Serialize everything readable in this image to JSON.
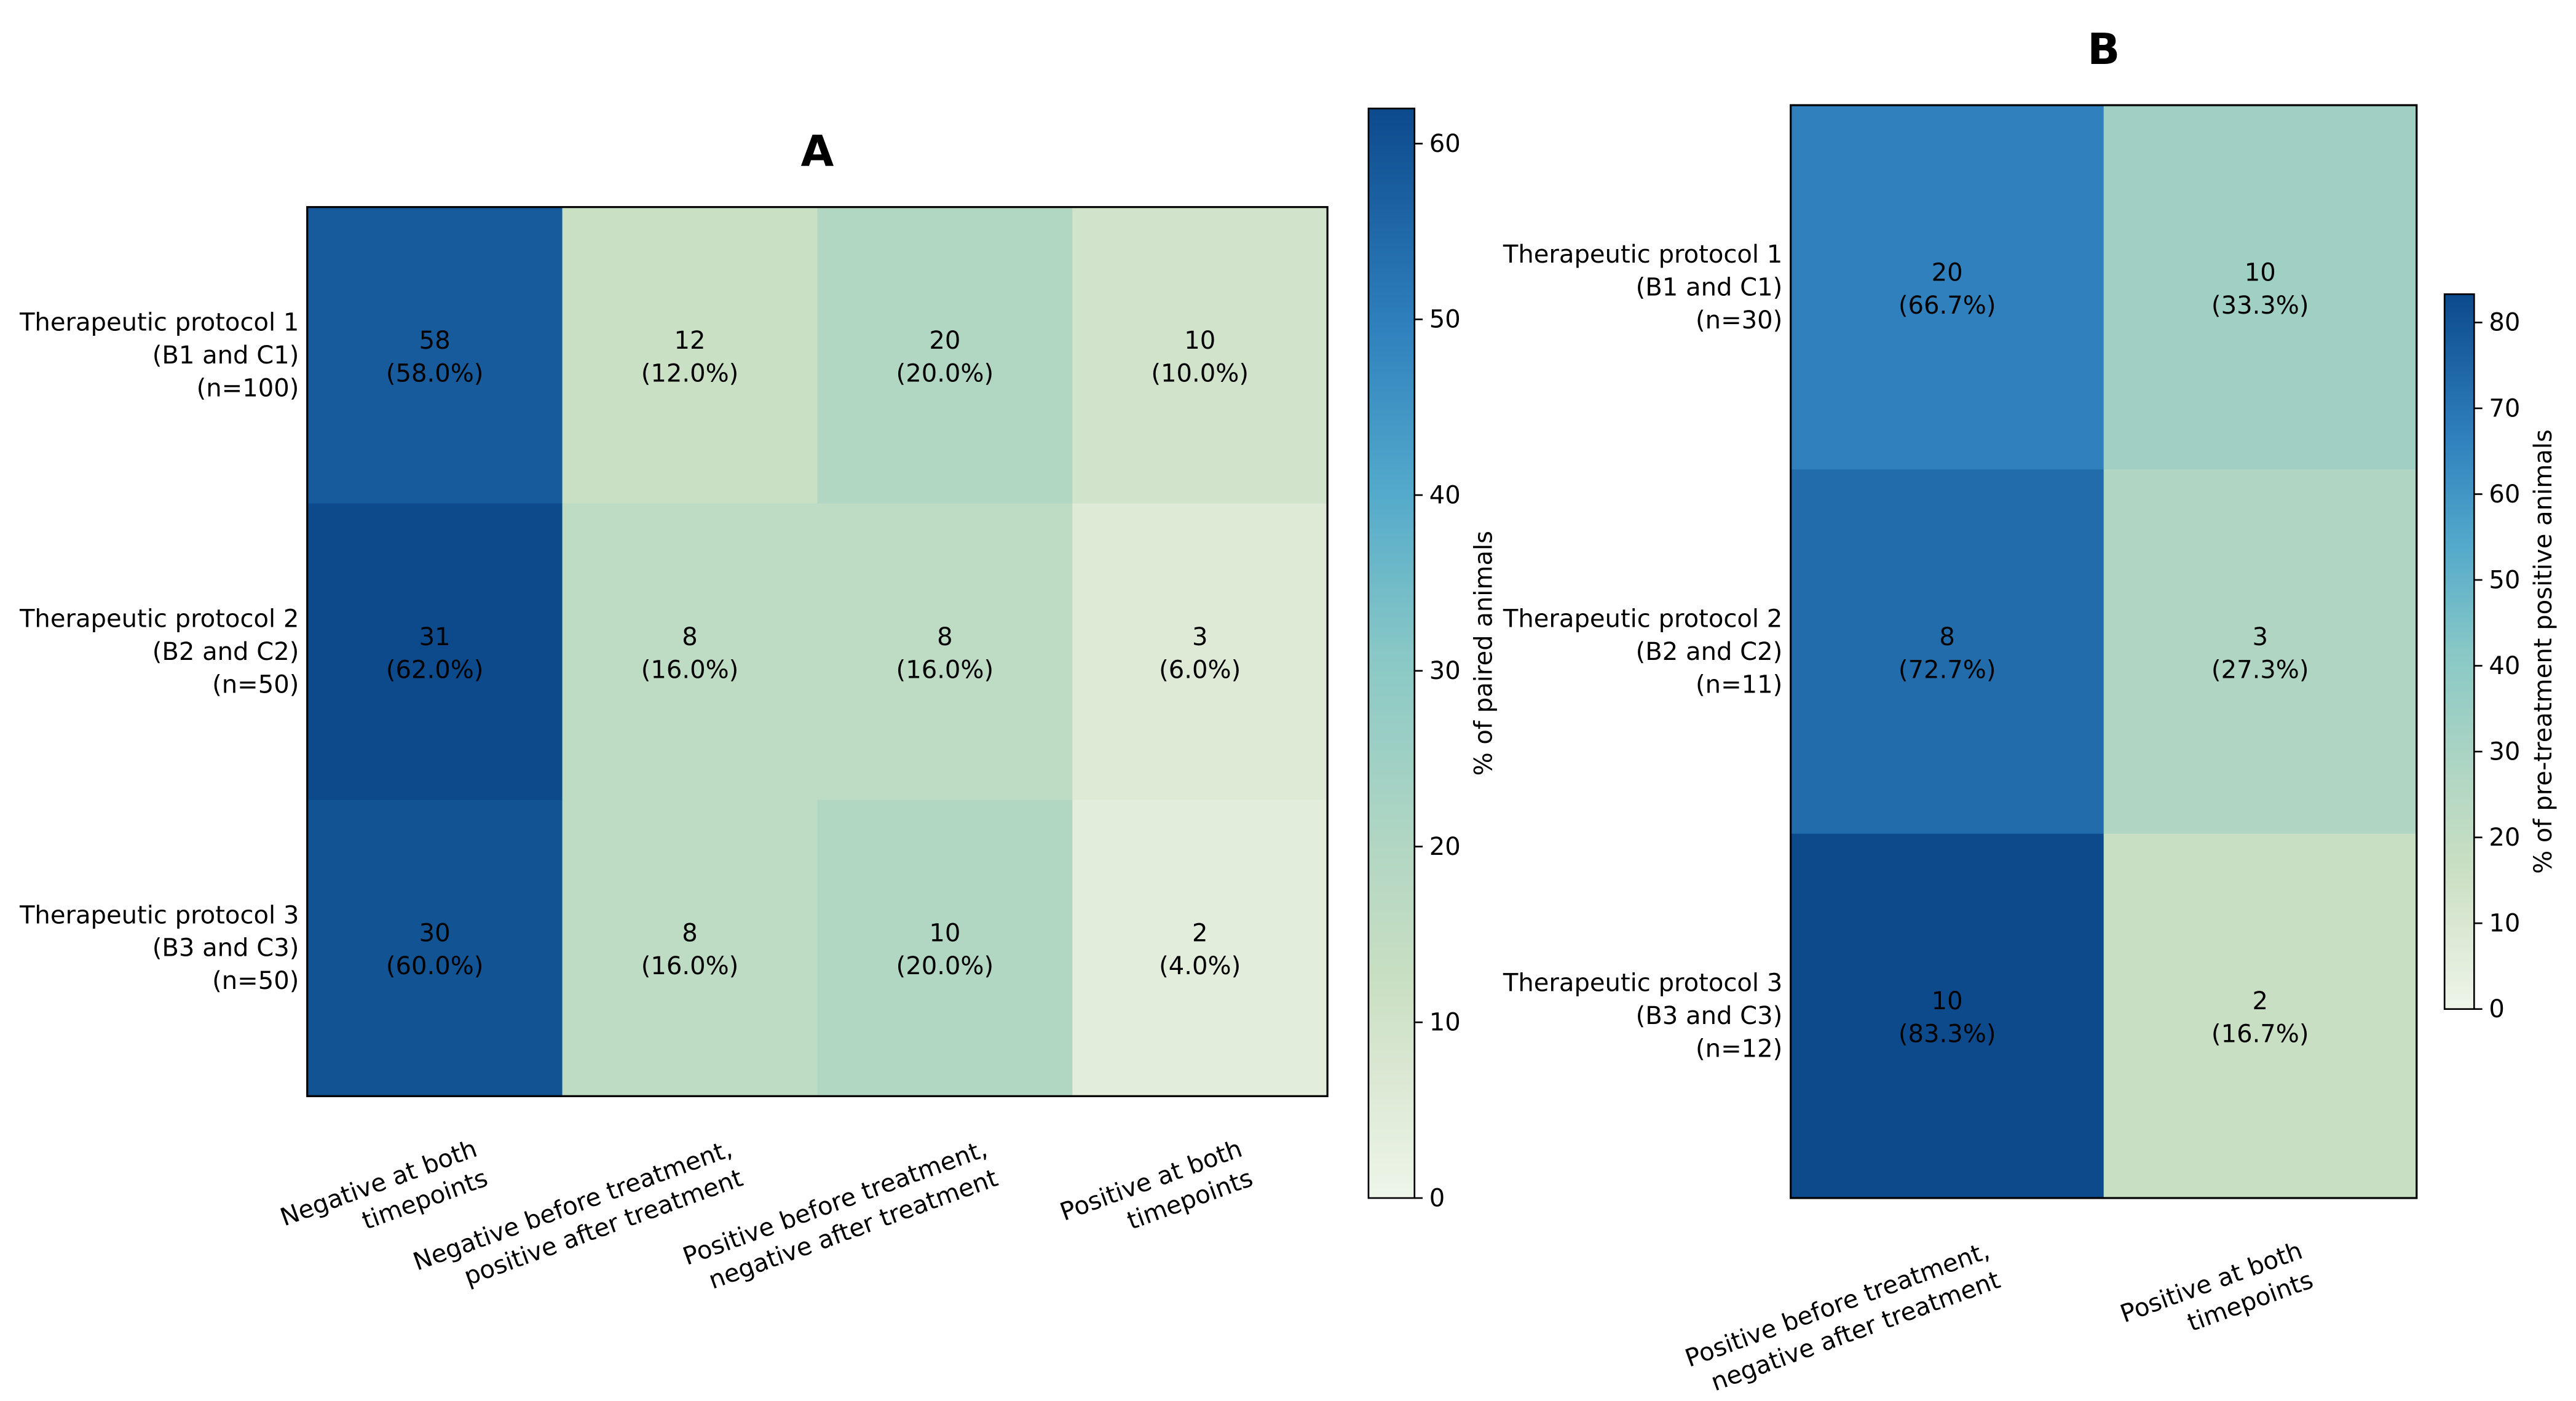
{
  "chart_data": [
    {
      "type": "heatmap",
      "title": "A",
      "rows": [
        "Therapeutic protocol 1\n(B1 and C1)\n(n=100)",
        "Therapeutic protocol 2\n(B2 and C2)\n(n=50)",
        "Therapeutic protocol 3\n(B3 and C3)\n(n=50)"
      ],
      "columns": [
        "Negative at both\ntimepoints",
        "Negative before treatment,\npositive after treatment",
        "Positive before treatment,\nnegative after treatment",
        "Positive at both\ntimepoints"
      ],
      "counts": [
        [
          58,
          12,
          20,
          10
        ],
        [
          31,
          8,
          8,
          3
        ],
        [
          30,
          8,
          10,
          2
        ]
      ],
      "percent": [
        [
          58.0,
          12.0,
          20.0,
          10.0
        ],
        [
          62.0,
          16.0,
          16.0,
          6.0
        ],
        [
          60.0,
          16.0,
          20.0,
          4.0
        ]
      ],
      "cell_labels": [
        [
          "(58.0%)",
          "(12.0%)",
          "(20.0%)",
          "(10.0%)"
        ],
        [
          "(62.0%)",
          "(16.0%)",
          "(16.0%)",
          "(6.0%)"
        ],
        [
          "(60.0%)",
          "(16.0%)",
          "(20.0%)",
          "(4.0%)"
        ]
      ],
      "colorbar": {
        "label": "% of paired animals",
        "range": [
          0,
          62
        ],
        "ticks": [
          "0",
          "10",
          "20",
          "30",
          "40",
          "50",
          "60"
        ]
      },
      "colormap": "GnBu"
    },
    {
      "type": "heatmap",
      "title": "B",
      "rows": [
        "Therapeutic protocol 1\n(B1 and C1)\n(n=30)",
        "Therapeutic protocol 2\n(B2 and C2)\n(n=11)",
        "Therapeutic protocol 3\n(B3 and C3)\n(n=12)"
      ],
      "columns": [
        "Positive before treatment,\nnegative after treatment",
        "Positive at both\ntimepoints"
      ],
      "counts": [
        [
          20,
          10
        ],
        [
          8,
          3
        ],
        [
          10,
          2
        ]
      ],
      "percent": [
        [
          66.7,
          33.3
        ],
        [
          72.7,
          27.3
        ],
        [
          83.3,
          16.7
        ]
      ],
      "cell_labels": [
        [
          "(66.7%)",
          "(33.3%)"
        ],
        [
          "(72.7%)",
          "(27.3%)"
        ],
        [
          "(83.3%)",
          "(16.7%)"
        ]
      ],
      "colorbar": {
        "label": "% of pre-treatment positive animals",
        "range": [
          0,
          83.3
        ],
        "ticks": [
          "0",
          "10",
          "20",
          "30",
          "40",
          "50",
          "60",
          "70",
          "80"
        ]
      },
      "colormap": "GnBu"
    }
  ]
}
